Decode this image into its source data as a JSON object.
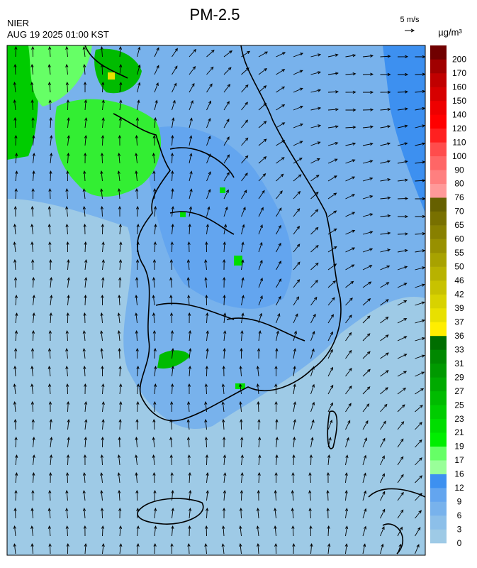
{
  "header": {
    "title": "PM-2.5",
    "agency": "NIER",
    "timestamp": "AUG 19 2025 01:00 KST"
  },
  "wind_scale": {
    "label": "5 m/s"
  },
  "colorbar": {
    "unit": "µg/m³",
    "levels": [
      {
        "label": "0",
        "color": "#9ecae6"
      },
      {
        "label": "3",
        "color": "#8cbfe9"
      },
      {
        "label": "6",
        "color": "#78b2ec"
      },
      {
        "label": "9",
        "color": "#63a5ef"
      },
      {
        "label": "12",
        "color": "#3d90f0"
      },
      {
        "label": "16",
        "color": "#99ff99"
      },
      {
        "label": "17",
        "color": "#66ff66"
      },
      {
        "label": "19",
        "color": "#00ee00"
      },
      {
        "label": "21",
        "color": "#00dd00"
      },
      {
        "label": "23",
        "color": "#00cc00"
      },
      {
        "label": "25",
        "color": "#00bb00"
      },
      {
        "label": "27",
        "color": "#00aa00"
      },
      {
        "label": "29",
        "color": "#009900"
      },
      {
        "label": "31",
        "color": "#008800"
      },
      {
        "label": "33",
        "color": "#006e00"
      },
      {
        "label": "36",
        "color": "#ffee00"
      },
      {
        "label": "37",
        "color": "#e8e000"
      },
      {
        "label": "39",
        "color": "#d8d200"
      },
      {
        "label": "42",
        "color": "#c8c200"
      },
      {
        "label": "46",
        "color": "#b8b200"
      },
      {
        "label": "50",
        "color": "#a8a200"
      },
      {
        "label": "55",
        "color": "#989000"
      },
      {
        "label": "60",
        "color": "#888000"
      },
      {
        "label": "65",
        "color": "#787000"
      },
      {
        "label": "70",
        "color": "#666000"
      },
      {
        "label": "76",
        "color": "#ff9999"
      },
      {
        "label": "80",
        "color": "#ff7f7f"
      },
      {
        "label": "90",
        "color": "#ff6666"
      },
      {
        "label": "100",
        "color": "#ff4c4c"
      },
      {
        "label": "110",
        "color": "#ff2020"
      },
      {
        "label": "120",
        "color": "#ff0000"
      },
      {
        "label": "140",
        "color": "#ee0000"
      },
      {
        "label": "150",
        "color": "#d60000"
      },
      {
        "label": "160",
        "color": "#c00000"
      },
      {
        "label": "170",
        "color": "#a00000"
      },
      {
        "label": "200",
        "color": "#700000"
      }
    ]
  }
}
